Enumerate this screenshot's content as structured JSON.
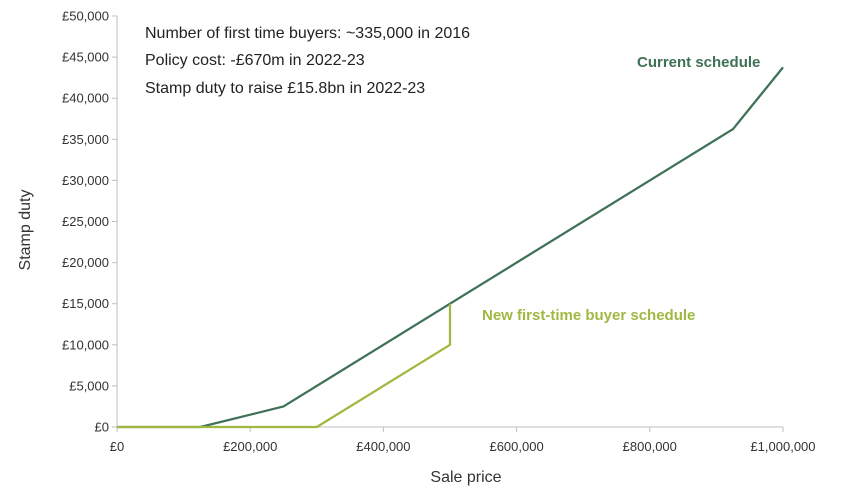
{
  "chart_data": {
    "type": "line",
    "xlabel": "Sale price",
    "ylabel": "Stamp duty",
    "xlim": [
      0,
      1000000
    ],
    "ylim": [
      0,
      50000
    ],
    "x_tick_labels": [
      "£0",
      "£200,000",
      "£400,000",
      "£600,000",
      "£800,000",
      "£1,000,000"
    ],
    "y_tick_labels": [
      "£0",
      "£5,000",
      "£10,000",
      "£15,000",
      "£20,000",
      "£25,000",
      "£30,000",
      "£35,000",
      "£40,000",
      "£45,000",
      "£50,000"
    ],
    "grid": false,
    "annotations": [
      "Number of first time buyers: ~335,000  in 2016",
      "Policy cost: -£670m in 2022-23",
      "Stamp duty to raise £15.8bn in 2022-23"
    ],
    "series": [
      {
        "name": "Current schedule",
        "color": "#3e7155",
        "points": [
          [
            0,
            0
          ],
          [
            125000,
            0
          ],
          [
            250000,
            2500
          ],
          [
            500000,
            15000
          ],
          [
            925000,
            36250
          ],
          [
            1000000,
            43750
          ]
        ]
      },
      {
        "name": "New first-time buyer schedule",
        "color": "#9fb940",
        "points": [
          [
            0,
            0
          ],
          [
            300000,
            0
          ],
          [
            500000,
            10000
          ],
          [
            500000,
            15000
          ]
        ]
      }
    ]
  }
}
